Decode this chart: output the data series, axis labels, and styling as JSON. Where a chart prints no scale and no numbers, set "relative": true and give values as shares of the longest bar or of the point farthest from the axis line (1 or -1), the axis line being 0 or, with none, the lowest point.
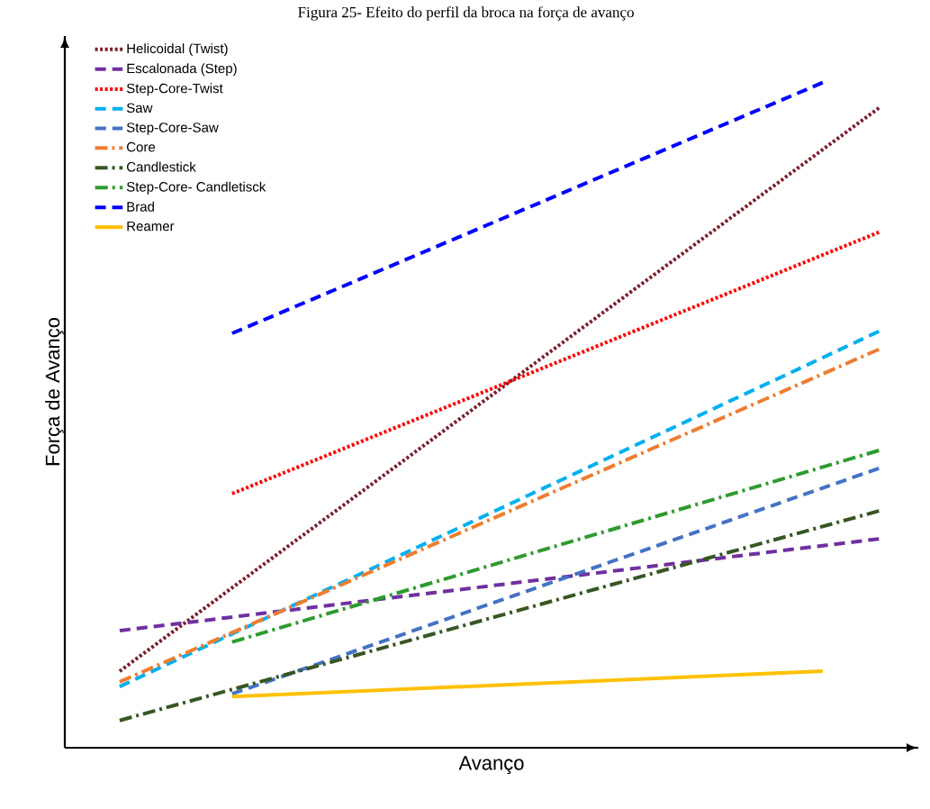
{
  "chart_data": {
    "type": "line",
    "title": "Figura 25- Efeito do perfil da broca na força de avanço",
    "xlabel": "Avanço",
    "ylabel": "Força de Avanço",
    "relative": true,
    "legend": "top left",
    "categories": [
      null,
      null,
      null,
      null,
      null,
      null,
      null,
      null,
      null,
      null,
      null,
      null,
      null,
      null,
      null,
      null,
      null,
      null,
      null,
      null,
      null,
      null,
      null,
      null,
      null,
      null,
      null,
      null
    ],
    "series": [
      {
        "name": "Helicoidal (Twist)",
        "color": "#7b1f2e",
        "line_style": "dotted",
        "values": [
          0.115,
          null,
          null,
          null,
          null,
          null,
          null,
          null,
          null,
          null,
          null,
          null,
          null,
          null,
          null,
          null,
          null,
          null,
          null,
          null,
          null,
          null,
          null,
          null,
          null,
          null,
          null,
          0.962
        ]
      },
      {
        "name": "Escalonada (Step)",
        "color": "#7030a0",
        "line_style": "dashed",
        "values": [
          0.176,
          null,
          null,
          null,
          null,
          null,
          null,
          null,
          null,
          null,
          null,
          null,
          null,
          null,
          null,
          null,
          null,
          null,
          null,
          null,
          null,
          null,
          null,
          null,
          null,
          null,
          null,
          0.314
        ]
      },
      {
        "name": "Step-Core-Twist",
        "color": "#ff0000",
        "line_style": "dotted",
        "values": [
          null,
          null,
          null,
          null,
          0.382,
          null,
          null,
          null,
          null,
          null,
          null,
          null,
          null,
          null,
          null,
          null,
          null,
          null,
          null,
          null,
          null,
          null,
          null,
          null,
          null,
          null,
          null,
          0.775
        ]
      },
      {
        "name": "Saw",
        "color": "#00b0f0",
        "line_style": "dashed",
        "values": [
          0.092,
          null,
          null,
          null,
          null,
          null,
          null,
          null,
          null,
          null,
          null,
          null,
          null,
          null,
          null,
          null,
          null,
          null,
          null,
          null,
          null,
          null,
          null,
          null,
          null,
          null,
          null,
          0.626
        ]
      },
      {
        "name": "Step-Core-Saw",
        "color": "#4472c4",
        "line_style": "dashed",
        "values": [
          null,
          null,
          null,
          null,
          0.081,
          null,
          null,
          null,
          null,
          null,
          null,
          null,
          null,
          null,
          null,
          null,
          null,
          null,
          null,
          null,
          null,
          null,
          null,
          null,
          null,
          null,
          null,
          0.42
        ]
      },
      {
        "name": "Core",
        "color": "#ed7d31",
        "line_style": "dashdot",
        "values": [
          0.099,
          null,
          null,
          null,
          null,
          null,
          null,
          null,
          null,
          null,
          null,
          null,
          null,
          null,
          null,
          null,
          null,
          null,
          null,
          null,
          null,
          null,
          null,
          null,
          null,
          null,
          null,
          0.599
        ]
      },
      {
        "name": "Candlestick",
        "color": "#375623",
        "line_style": "dashdot",
        "values": [
          0.041,
          null,
          null,
          null,
          null,
          null,
          null,
          null,
          null,
          null,
          null,
          null,
          null,
          null,
          null,
          null,
          null,
          null,
          null,
          null,
          null,
          null,
          null,
          null,
          null,
          null,
          null,
          0.356
        ]
      },
      {
        "name": "Step-Core- Candletisck",
        "color": "#2e9b2e",
        "line_style": "dashdot",
        "values": [
          null,
          null,
          null,
          null,
          0.159,
          null,
          null,
          null,
          null,
          null,
          null,
          null,
          null,
          null,
          null,
          null,
          null,
          null,
          null,
          null,
          null,
          null,
          null,
          null,
          null,
          null,
          null,
          0.447
        ]
      },
      {
        "name": "Brad",
        "color": "#0000ff",
        "line_style": "dashed",
        "values": [
          null,
          null,
          null,
          null,
          0.623,
          null,
          null,
          null,
          null,
          null,
          null,
          null,
          null,
          null,
          null,
          null,
          null,
          null,
          null,
          null,
          null,
          null,
          null,
          null,
          null,
          1,
          null,
          null
        ]
      },
      {
        "name": "Reamer",
        "color": "#ffc000",
        "line_style": "solid",
        "values": [
          null,
          null,
          null,
          null,
          0.077,
          null,
          null,
          null,
          null,
          null,
          null,
          null,
          null,
          null,
          null,
          null,
          null,
          null,
          null,
          null,
          null,
          null,
          null,
          null,
          null,
          0.115,
          null,
          null
        ]
      }
    ]
  }
}
